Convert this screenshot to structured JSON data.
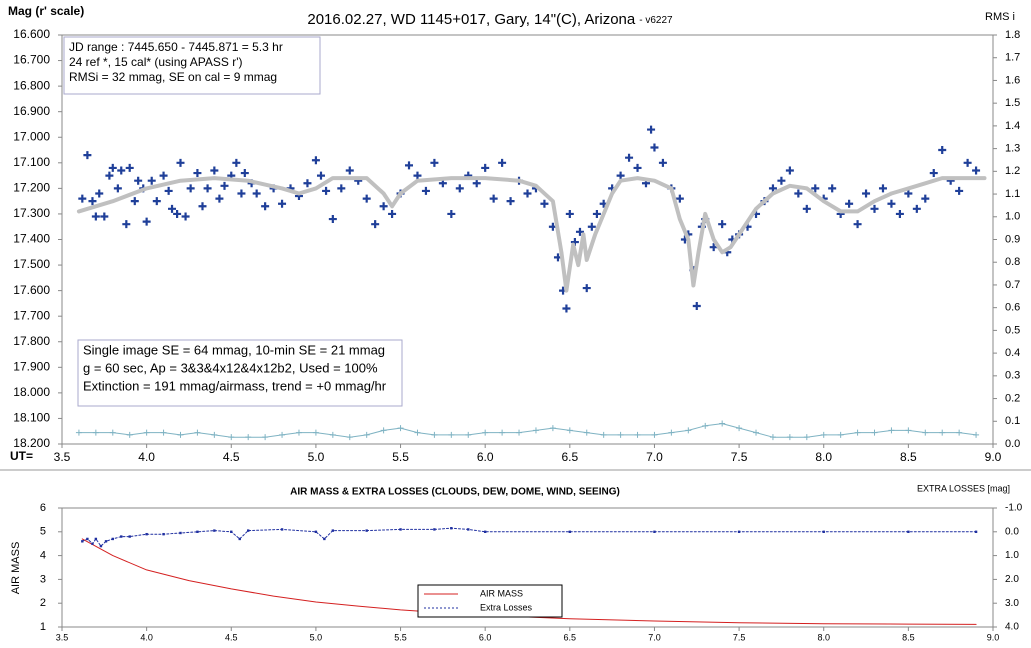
{
  "chart_data": [
    {
      "type": "scatter",
      "title": "2016.02.27, WD 1145+017, Gary, 14\"(C), Arizona",
      "title_note": "- v6227",
      "ylabel": "Mag (r' scale)",
      "y2label": "RMS i",
      "xlabel": "UT=",
      "xlim": [
        3.5,
        9.0
      ],
      "xticks": [
        3.5,
        {
          "value": 4.0,
          "label": "4.0"
        },
        4.5,
        {
          "value": 5.0,
          "label": "5.0"
        },
        5.5,
        {
          "value": 6.0,
          "label": "6.0"
        },
        6.5,
        {
          "value": 7.0,
          "label": "7.0"
        },
        7.5,
        {
          "value": 8.0,
          "label": "8.0"
        },
        8.5,
        {
          "value": 9.0,
          "label": "9.0"
        }
      ],
      "ylim": [
        16.6,
        18.2
      ],
      "y_inverted": true,
      "yticks": [
        {
          "value": 16.6,
          "label": "16.600"
        },
        {
          "value": 16.7,
          "label": "16.700"
        },
        {
          "value": 16.8,
          "label": "16.800"
        },
        {
          "value": 16.9,
          "label": "16.900"
        },
        {
          "value": 17.0,
          "label": "17.000"
        },
        {
          "value": 17.1,
          "label": "17.100"
        },
        {
          "value": 17.2,
          "label": "17.200"
        },
        {
          "value": 17.3,
          "label": "17.300"
        },
        {
          "value": 17.4,
          "label": "17.400"
        },
        {
          "value": 17.5,
          "label": "17.500"
        },
        {
          "value": 17.6,
          "label": "17.600"
        },
        {
          "value": 17.7,
          "label": "17.700"
        },
        {
          "value": 17.8,
          "label": "17.800"
        },
        {
          "value": 17.9,
          "label": "17.900"
        },
        {
          "value": 18.0,
          "label": "18.000"
        },
        {
          "value": 18.1,
          "label": "18.100"
        },
        {
          "value": 18.2,
          "label": "18.200"
        }
      ],
      "y2lim": [
        0,
        1.8
      ],
      "y2ticks": [
        {
          "value": 0,
          "label": "0.0"
        },
        0.1,
        0.2,
        0.3,
        0.4,
        0.5,
        0.6,
        0.7,
        0.8,
        0.9,
        {
          "value": 1.0,
          "label": "1.0"
        },
        1.1,
        1.2,
        1.3,
        1.4,
        1.5,
        1.6,
        1.7,
        1.8
      ],
      "grid": false,
      "annotations": [
        {
          "lines": [
            "JD range  : 7445.650 - 7445.871  = 5.3 hr",
            " 24 ref *, 15 cal* (using APASS r')",
            "RMSi = 32 mmag, SE on cal = 9 mmag"
          ]
        },
        {
          "lines": [
            "Single image SE = 64 mmag, 10-min SE = 21 mmag",
            "g = 60 sec, Ap = 3&3&4x12&4x12b2, Used = 100%",
            "Extinction = 191 mmag/airmass, trend = +0 mmag/hr"
          ]
        }
      ],
      "series": [
        {
          "kind": "points",
          "color": "#1f3f99",
          "x": [
            3.62,
            3.65,
            3.68,
            3.7,
            3.72,
            3.75,
            3.78,
            3.8,
            3.83,
            3.85,
            3.88,
            3.9,
            3.93,
            3.95,
            3.98,
            4.0,
            4.03,
            4.06,
            4.1,
            4.13,
            4.15,
            4.18,
            4.2,
            4.23,
            4.26,
            4.3,
            4.33,
            4.36,
            4.4,
            4.43,
            4.46,
            4.5,
            4.53,
            4.56,
            4.58,
            4.62,
            4.65,
            4.7,
            4.75,
            4.8,
            4.85,
            4.9,
            4.95,
            5.0,
            5.03,
            5.06,
            5.1,
            5.15,
            5.2,
            5.25,
            5.3,
            5.35,
            5.4,
            5.45,
            5.5,
            5.55,
            5.6,
            5.65,
            5.7,
            5.75,
            5.8,
            5.85,
            5.9,
            5.95,
            6.0,
            6.05,
            6.1,
            6.15,
            6.2,
            6.25,
            6.3,
            6.35,
            6.4,
            6.43,
            6.46,
            6.48,
            6.5,
            6.53,
            6.56,
            6.6,
            6.63,
            6.66,
            6.7,
            6.75,
            6.8,
            6.85,
            6.9,
            6.95,
            6.98,
            7.0,
            7.05,
            7.1,
            7.15,
            7.18,
            7.2,
            7.23,
            7.25,
            7.28,
            7.3,
            7.35,
            7.4,
            7.43,
            7.46,
            7.5,
            7.55,
            7.6,
            7.65,
            7.7,
            7.75,
            7.8,
            7.85,
            7.9,
            7.95,
            8.0,
            8.05,
            8.1,
            8.15,
            8.2,
            8.25,
            8.3,
            8.35,
            8.4,
            8.45,
            8.5,
            8.55,
            8.6,
            8.65,
            8.7,
            8.75,
            8.8,
            8.85,
            8.9
          ],
          "values": [
            17.24,
            17.07,
            17.25,
            17.31,
            17.22,
            17.31,
            17.15,
            17.12,
            17.2,
            17.13,
            17.34,
            17.12,
            17.25,
            17.17,
            17.2,
            17.33,
            17.17,
            17.25,
            17.15,
            17.21,
            17.28,
            17.3,
            17.1,
            17.31,
            17.2,
            17.14,
            17.27,
            17.2,
            17.13,
            17.24,
            17.19,
            17.15,
            17.1,
            17.22,
            17.14,
            17.18,
            17.22,
            17.27,
            17.2,
            17.26,
            17.2,
            17.23,
            17.18,
            17.09,
            17.15,
            17.21,
            17.32,
            17.2,
            17.13,
            17.17,
            17.24,
            17.34,
            17.27,
            17.3,
            17.22,
            17.11,
            17.15,
            17.21,
            17.1,
            17.18,
            17.3,
            17.2,
            17.15,
            17.18,
            17.12,
            17.24,
            17.1,
            17.25,
            17.17,
            17.22,
            17.2,
            17.26,
            17.35,
            17.47,
            17.6,
            17.67,
            17.3,
            17.41,
            17.37,
            17.59,
            17.35,
            17.3,
            17.26,
            17.2,
            17.15,
            17.08,
            17.12,
            17.18,
            16.97,
            17.04,
            17.1,
            17.2,
            17.24,
            17.4,
            17.38,
            17.52,
            17.66,
            17.35,
            17.32,
            17.43,
            17.34,
            17.45,
            17.4,
            17.38,
            17.35,
            17.3,
            17.25,
            17.2,
            17.17,
            17.13,
            17.22,
            17.28,
            17.2,
            17.24,
            17.2,
            17.3,
            17.26,
            17.34,
            17.22,
            17.28,
            17.2,
            17.26,
            17.3,
            17.22,
            17.28,
            17.24,
            17.14,
            17.05,
            17.17,
            17.21,
            17.1,
            17.13
          ]
        },
        {
          "kind": "line",
          "color": "#c0c0c0",
          "width": 4,
          "x": [
            3.6,
            3.8,
            4.0,
            4.2,
            4.4,
            4.6,
            4.8,
            4.9,
            5.0,
            5.1,
            5.3,
            5.4,
            5.45,
            5.5,
            5.6,
            5.8,
            6.0,
            6.2,
            6.3,
            6.4,
            6.45,
            6.48,
            6.52,
            6.55,
            6.58,
            6.6,
            6.65,
            6.7,
            6.75,
            6.8,
            6.9,
            7.0,
            7.1,
            7.15,
            7.2,
            7.23,
            7.26,
            7.3,
            7.35,
            7.4,
            7.45,
            7.5,
            7.6,
            7.7,
            7.8,
            7.9,
            8.0,
            8.1,
            8.2,
            8.3,
            8.4,
            8.5,
            8.6,
            8.7,
            8.8,
            8.95
          ],
          "values": [
            17.29,
            17.25,
            17.2,
            17.17,
            17.16,
            17.17,
            17.2,
            17.22,
            17.2,
            17.16,
            17.16,
            17.22,
            17.27,
            17.22,
            17.17,
            17.16,
            17.16,
            17.17,
            17.19,
            17.25,
            17.45,
            17.6,
            17.42,
            17.5,
            17.38,
            17.48,
            17.38,
            17.3,
            17.22,
            17.17,
            17.16,
            17.17,
            17.2,
            17.32,
            17.4,
            17.58,
            17.45,
            17.3,
            17.4,
            17.45,
            17.43,
            17.38,
            17.28,
            17.22,
            17.19,
            17.2,
            17.25,
            17.29,
            17.29,
            17.25,
            17.22,
            17.2,
            17.18,
            17.16,
            17.16,
            17.16
          ]
        },
        {
          "kind": "line-plus",
          "color": "#7fb3c3",
          "width": 1,
          "axis": "y2",
          "x": [
            3.6,
            3.7,
            3.8,
            3.9,
            4.0,
            4.1,
            4.2,
            4.3,
            4.4,
            4.5,
            4.6,
            4.7,
            4.8,
            4.9,
            5.0,
            5.1,
            5.2,
            5.3,
            5.4,
            5.5,
            5.6,
            5.7,
            5.8,
            5.9,
            6.0,
            6.1,
            6.2,
            6.3,
            6.4,
            6.5,
            6.6,
            6.7,
            6.8,
            6.9,
            7.0,
            7.1,
            7.2,
            7.3,
            7.4,
            7.5,
            7.6,
            7.7,
            7.8,
            7.9,
            8.0,
            8.1,
            8.2,
            8.3,
            8.4,
            8.5,
            8.6,
            8.7,
            8.8,
            8.9
          ],
          "values": [
            0.05,
            0.05,
            0.05,
            0.04,
            0.05,
            0.05,
            0.04,
            0.05,
            0.04,
            0.03,
            0.03,
            0.03,
            0.04,
            0.05,
            0.05,
            0.04,
            0.03,
            0.04,
            0.06,
            0.07,
            0.05,
            0.04,
            0.04,
            0.04,
            0.05,
            0.05,
            0.05,
            0.06,
            0.07,
            0.06,
            0.05,
            0.04,
            0.04,
            0.04,
            0.04,
            0.05,
            0.06,
            0.08,
            0.09,
            0.07,
            0.05,
            0.03,
            0.03,
            0.03,
            0.04,
            0.04,
            0.05,
            0.05,
            0.06,
            0.06,
            0.05,
            0.05,
            0.05,
            0.04
          ]
        }
      ]
    },
    {
      "type": "line",
      "title": "AIR MASS & EXTRA LOSSES (CLOUDS, DEW, DOME, WIND, SEEING)",
      "ylabel": "AIR MASS",
      "y2label": "EXTRA LOSSES [mag]",
      "xlim": [
        3.5,
        9.0
      ],
      "xticks": [
        3.5,
        {
          "value": 4.0,
          "label": "4.0"
        },
        4.5,
        {
          "value": 5.0,
          "label": "5.0"
        },
        5.5,
        {
          "value": 6.0,
          "label": "6.0"
        },
        6.5,
        {
          "value": 7.0,
          "label": "7.0"
        },
        7.5,
        {
          "value": 8.0,
          "label": "8.0"
        },
        8.5,
        {
          "value": 9.0,
          "label": "9.0"
        }
      ],
      "ylim": [
        1,
        6
      ],
      "yticks": [
        1,
        2,
        3,
        4,
        5,
        6
      ],
      "y2lim": [
        -1,
        4
      ],
      "y2_inverted": true,
      "y2ticks": [
        {
          "value": -1,
          "label": "-1.0"
        },
        {
          "value": 0,
          "label": "0.0"
        },
        {
          "value": 1,
          "label": "1.0"
        },
        {
          "value": 2,
          "label": "2.0"
        },
        {
          "value": 3,
          "label": "3.0"
        },
        {
          "value": 4,
          "label": "4.0"
        }
      ],
      "grid": false,
      "legend": "center",
      "series": [
        {
          "name": "AIR MASS",
          "kind": "line",
          "color": "#d42020",
          "width": 1,
          "x": [
            3.62,
            3.8,
            4.0,
            4.25,
            4.5,
            4.75,
            5.0,
            5.25,
            5.5,
            5.75,
            6.0,
            6.5,
            7.0,
            7.5,
            8.0,
            8.5,
            8.9
          ],
          "values": [
            4.7,
            4.0,
            3.4,
            2.95,
            2.6,
            2.3,
            2.05,
            1.88,
            1.72,
            1.6,
            1.5,
            1.35,
            1.25,
            1.18,
            1.14,
            1.12,
            1.11
          ]
        },
        {
          "name": "Extra Losses",
          "kind": "dotted",
          "color": "#1f2fa0",
          "width": 1,
          "axis": "y2",
          "x": [
            3.62,
            3.65,
            3.68,
            3.7,
            3.73,
            3.76,
            3.8,
            3.85,
            3.9,
            4.0,
            4.1,
            4.2,
            4.3,
            4.4,
            4.5,
            4.55,
            4.6,
            4.8,
            5.0,
            5.05,
            5.1,
            5.3,
            5.5,
            5.7,
            5.8,
            5.9,
            6.0,
            6.5,
            7.0,
            7.5,
            8.0,
            8.5,
            8.9
          ],
          "values": [
            0.4,
            0.3,
            0.5,
            0.3,
            0.6,
            0.4,
            0.3,
            0.2,
            0.2,
            0.1,
            0.1,
            0.05,
            0.0,
            -0.05,
            0.0,
            0.3,
            -0.05,
            -0.1,
            0.0,
            0.3,
            -0.05,
            -0.05,
            -0.1,
            -0.1,
            -0.15,
            -0.1,
            0.0,
            0.0,
            0.0,
            0.0,
            0.0,
            0.0,
            0.0
          ]
        }
      ]
    }
  ]
}
